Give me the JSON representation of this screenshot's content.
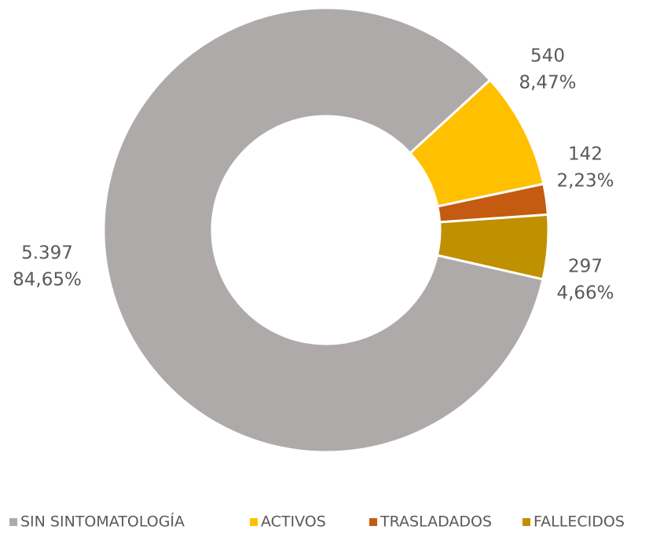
{
  "chart_data": {
    "type": "donut",
    "categories": [
      "SIN SINTOMATOLOGÍA",
      "ACTIVOS",
      "TRASLADADOS",
      "FALLECIDOS"
    ],
    "values": [
      5397,
      540,
      142,
      297
    ],
    "value_labels": [
      "5.397",
      "540",
      "142",
      "297"
    ],
    "percentages": [
      84.65,
      8.47,
      2.23,
      4.66
    ],
    "percentage_labels": [
      "84,65%",
      "8,47%",
      "2,23%",
      "4,66%"
    ],
    "colors": [
      "#aeaaaa",
      "#ffc000",
      "#c55a11",
      "#bf9000"
    ],
    "legend": "bottom"
  }
}
